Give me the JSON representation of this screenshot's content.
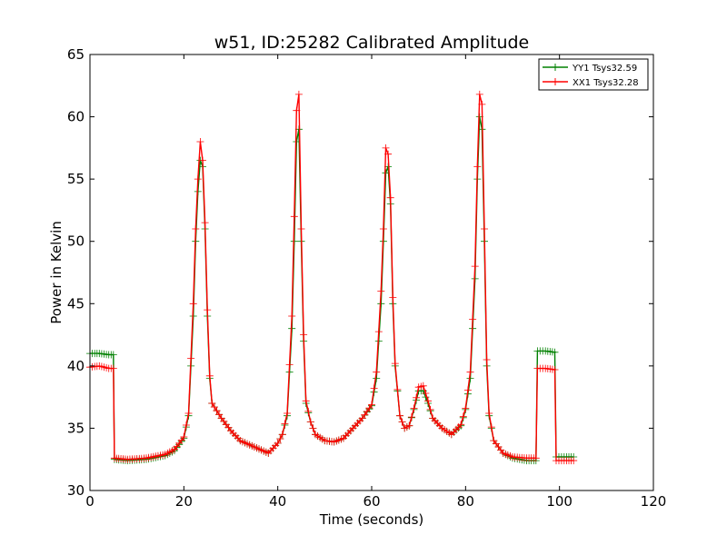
{
  "chart_data": {
    "type": "line",
    "title": "w51, ID:25282 Calibrated Amplitude",
    "xlabel": "Time (seconds)",
    "ylabel": "Power in Kelvin",
    "xlim": [
      0,
      120
    ],
    "ylim": [
      30,
      65
    ],
    "xticks": [
      0,
      20,
      40,
      60,
      80,
      100,
      120
    ],
    "yticks": [
      30,
      35,
      40,
      45,
      50,
      55,
      60,
      65
    ],
    "grid": false,
    "legend_position": "top-right",
    "marker": "+",
    "series": [
      {
        "name": "YY1 Tsys32.59",
        "color": "#008000",
        "points": [
          [
            0,
            41.0
          ],
          [
            2,
            41.0
          ],
          [
            4,
            40.9
          ],
          [
            5,
            40.9
          ],
          [
            5.2,
            32.5
          ],
          [
            8,
            32.4
          ],
          [
            12,
            32.5
          ],
          [
            16,
            32.8
          ],
          [
            18,
            33.2
          ],
          [
            20,
            34.2
          ],
          [
            21,
            36.0
          ],
          [
            22,
            44.0
          ],
          [
            22.5,
            50.0
          ],
          [
            23,
            54.0
          ],
          [
            23.5,
            56.5
          ],
          [
            24,
            56.0
          ],
          [
            24.5,
            51.0
          ],
          [
            25,
            44.0
          ],
          [
            25.5,
            39.0
          ],
          [
            26,
            37.0
          ],
          [
            28,
            35.8
          ],
          [
            30,
            34.8
          ],
          [
            32,
            34.0
          ],
          [
            35,
            33.5
          ],
          [
            38,
            33.0
          ],
          [
            40,
            33.8
          ],
          [
            41,
            34.5
          ],
          [
            42,
            36.0
          ],
          [
            43,
            43.0
          ],
          [
            43.5,
            50.0
          ],
          [
            44,
            58.0
          ],
          [
            44.5,
            59.0
          ],
          [
            45,
            50.0
          ],
          [
            45.5,
            42.0
          ],
          [
            46,
            37.0
          ],
          [
            47,
            35.5
          ],
          [
            48,
            34.5
          ],
          [
            50,
            34.0
          ],
          [
            52,
            33.9
          ],
          [
            54,
            34.2
          ],
          [
            56,
            35.0
          ],
          [
            58,
            35.8
          ],
          [
            60,
            36.8
          ],
          [
            61,
            39.0
          ],
          [
            62,
            45.0
          ],
          [
            62.5,
            50.0
          ],
          [
            63,
            55.5
          ],
          [
            63.5,
            56.0
          ],
          [
            64,
            53.0
          ],
          [
            64.5,
            45.0
          ],
          [
            65,
            40.0
          ],
          [
            66,
            36.0
          ],
          [
            67,
            35.0
          ],
          [
            68,
            35.2
          ],
          [
            69,
            36.5
          ],
          [
            70,
            38.0
          ],
          [
            71,
            38.0
          ],
          [
            72,
            37.0
          ],
          [
            73,
            35.8
          ],
          [
            75,
            35.0
          ],
          [
            77,
            34.5
          ],
          [
            79,
            35.2
          ],
          [
            80,
            36.5
          ],
          [
            81,
            39.0
          ],
          [
            82,
            47.0
          ],
          [
            82.5,
            55.0
          ],
          [
            83,
            60.0
          ],
          [
            83.5,
            59.0
          ],
          [
            84,
            50.0
          ],
          [
            84.5,
            40.0
          ],
          [
            85,
            36.0
          ],
          [
            86,
            34.0
          ],
          [
            88,
            33.0
          ],
          [
            90,
            32.6
          ],
          [
            93,
            32.4
          ],
          [
            95,
            32.4
          ],
          [
            95.3,
            41.2
          ],
          [
            97,
            41.2
          ],
          [
            99,
            41.1
          ],
          [
            99.3,
            32.7
          ],
          [
            101,
            32.7
          ],
          [
            103,
            32.7
          ]
        ]
      },
      {
        "name": "XX1 Tsys32.28",
        "color": "#ff0000",
        "points": [
          [
            0,
            39.9
          ],
          [
            2,
            40.0
          ],
          [
            4,
            39.8
          ],
          [
            5,
            39.8
          ],
          [
            5.2,
            32.6
          ],
          [
            8,
            32.5
          ],
          [
            12,
            32.6
          ],
          [
            16,
            32.9
          ],
          [
            18,
            33.3
          ],
          [
            20,
            34.3
          ],
          [
            21,
            36.2
          ],
          [
            22,
            45.0
          ],
          [
            22.5,
            51.0
          ],
          [
            23,
            55.0
          ],
          [
            23.5,
            58.0
          ],
          [
            24,
            56.5
          ],
          [
            24.5,
            51.5
          ],
          [
            25,
            44.5
          ],
          [
            25.5,
            39.2
          ],
          [
            26,
            37.0
          ],
          [
            28,
            35.8
          ],
          [
            30,
            34.8
          ],
          [
            32,
            34.0
          ],
          [
            35,
            33.5
          ],
          [
            38,
            33.0
          ],
          [
            40,
            33.8
          ],
          [
            41,
            34.5
          ],
          [
            42,
            36.2
          ],
          [
            43,
            44.0
          ],
          [
            43.5,
            52.0
          ],
          [
            44,
            60.5
          ],
          [
            44.5,
            61.8
          ],
          [
            45,
            51.0
          ],
          [
            45.5,
            42.5
          ],
          [
            46,
            37.2
          ],
          [
            47,
            35.5
          ],
          [
            48,
            34.5
          ],
          [
            50,
            34.0
          ],
          [
            52,
            33.9
          ],
          [
            54,
            34.2
          ],
          [
            56,
            35.0
          ],
          [
            58,
            35.8
          ],
          [
            60,
            36.9
          ],
          [
            61,
            39.5
          ],
          [
            62,
            46.0
          ],
          [
            62.5,
            51.0
          ],
          [
            63,
            57.5
          ],
          [
            63.5,
            57.0
          ],
          [
            64,
            53.5
          ],
          [
            64.5,
            45.5
          ],
          [
            65,
            40.2
          ],
          [
            66,
            36.0
          ],
          [
            67,
            35.0
          ],
          [
            68,
            35.2
          ],
          [
            69,
            36.6
          ],
          [
            70,
            38.3
          ],
          [
            71,
            38.4
          ],
          [
            72,
            37.2
          ],
          [
            73,
            35.8
          ],
          [
            75,
            35.0
          ],
          [
            77,
            34.5
          ],
          [
            79,
            35.3
          ],
          [
            80,
            36.6
          ],
          [
            81,
            39.5
          ],
          [
            82,
            48.0
          ],
          [
            82.5,
            56.0
          ],
          [
            83,
            61.8
          ],
          [
            83.5,
            61.0
          ],
          [
            84,
            51.0
          ],
          [
            84.5,
            40.5
          ],
          [
            85,
            36.2
          ],
          [
            86,
            34.0
          ],
          [
            88,
            33.0
          ],
          [
            90,
            32.7
          ],
          [
            93,
            32.6
          ],
          [
            95,
            32.6
          ],
          [
            95.3,
            39.8
          ],
          [
            97,
            39.8
          ],
          [
            99,
            39.7
          ],
          [
            99.3,
            32.4
          ],
          [
            101,
            32.4
          ],
          [
            103,
            32.4
          ]
        ]
      }
    ]
  }
}
